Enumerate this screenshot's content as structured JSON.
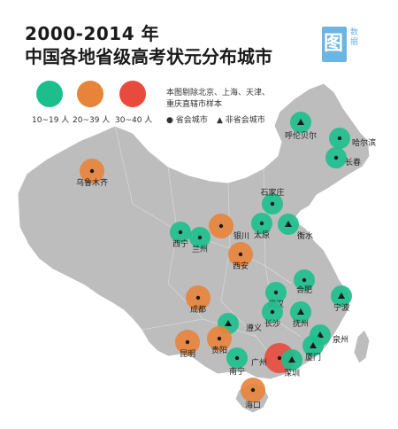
{
  "title": {
    "line1": "2000-2014 年",
    "line2": "中国各地省级高考状元分布城市"
  },
  "logo": {
    "mark": "图",
    "text": "数据"
  },
  "legend": {
    "tiers": [
      {
        "label": "10~19 人",
        "color": "#1cbf8c"
      },
      {
        "label": "20~39 人",
        "color": "#e8833a"
      },
      {
        "label": "30~40 人",
        "color": "#e84a3d"
      }
    ],
    "note": [
      "本图剔除北京、上海、天津、",
      "重庆直辖市样本"
    ],
    "capital": "● 省会城市",
    "non_capital": "▲ 非省会城市"
  },
  "colors": {
    "land": "#bdbdbd",
    "sea": "#ffffff",
    "green": "#1cbf8c",
    "orange": "#e8833a",
    "red": "#e84a3d"
  },
  "cities": [
    {
      "name": "呼伦贝尔",
      "tier": 0,
      "marker": "triangle"
    },
    {
      "name": "哈尔滨",
      "tier": 0,
      "marker": "dot"
    },
    {
      "name": "长春",
      "tier": 0,
      "marker": "dot"
    },
    {
      "name": "乌鲁木齐",
      "tier": 1,
      "marker": "dot"
    },
    {
      "name": "石家庄",
      "tier": 0,
      "marker": "dot"
    },
    {
      "name": "太原",
      "tier": 0,
      "marker": "dot"
    },
    {
      "name": "衡水",
      "tier": 0,
      "marker": "triangle"
    },
    {
      "name": "银川",
      "tier": 1,
      "marker": "dot"
    },
    {
      "name": "西宁",
      "tier": 0,
      "marker": "dot"
    },
    {
      "name": "兰州",
      "tier": 0,
      "marker": "dot"
    },
    {
      "name": "西安",
      "tier": 1,
      "marker": "dot"
    },
    {
      "name": "合肥",
      "tier": 0,
      "marker": "dot"
    },
    {
      "name": "宁波",
      "tier": 0,
      "marker": "triangle"
    },
    {
      "name": "武汉",
      "tier": 0,
      "marker": "dot"
    },
    {
      "name": "成都",
      "tier": 1,
      "marker": "dot"
    },
    {
      "name": "遵义",
      "tier": 0,
      "marker": "triangle"
    },
    {
      "name": "长沙",
      "tier": 0,
      "marker": "dot"
    },
    {
      "name": "抚州",
      "tier": 0,
      "marker": "triangle"
    },
    {
      "name": "泉州",
      "tier": 0,
      "marker": "triangle"
    },
    {
      "name": "贵阳",
      "tier": 1,
      "marker": "dot"
    },
    {
      "name": "昆明",
      "tier": 1,
      "marker": "dot"
    },
    {
      "name": "厦门",
      "tier": 0,
      "marker": "triangle"
    },
    {
      "name": "南宁",
      "tier": 0,
      "marker": "dot"
    },
    {
      "name": "广州",
      "tier": 2,
      "marker": "dot"
    },
    {
      "name": "深圳",
      "tier": 0,
      "marker": "triangle"
    },
    {
      "name": "海口",
      "tier": 1,
      "marker": "dot"
    }
  ]
}
